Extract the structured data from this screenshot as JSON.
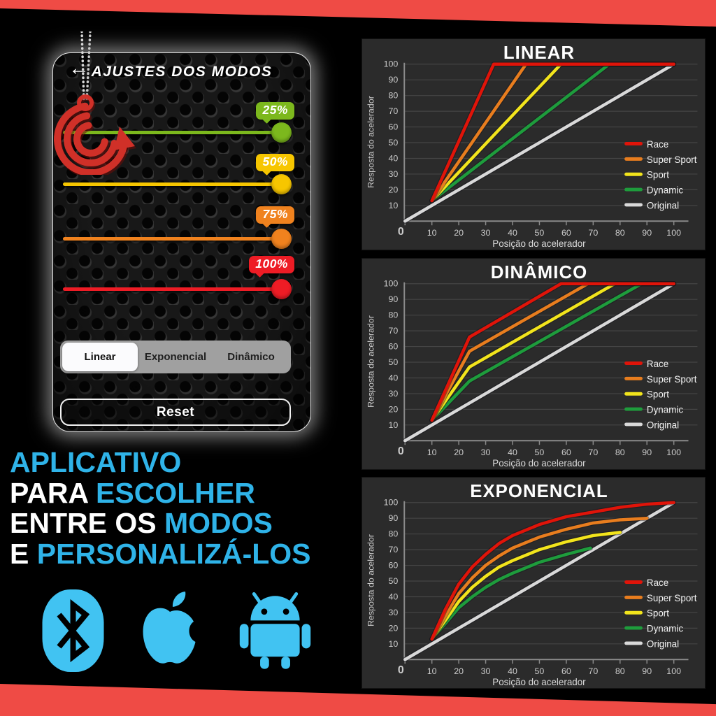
{
  "page": {
    "background": "#000000",
    "band_color": "#ef4b45",
    "accent_cyan": "#2fb3e8",
    "platform_icon_color": "#41c3f2"
  },
  "phone": {
    "back_icon": "←",
    "title": "AJUSTES DOS MODOS",
    "pendant_color": "#d03028",
    "sliders": [
      {
        "label": "25%",
        "color": "#7cb81d"
      },
      {
        "label": "50%",
        "color": "#f7c600"
      },
      {
        "label": "75%",
        "color": "#f0821e"
      },
      {
        "label": "100%",
        "color": "#ee1c25"
      }
    ],
    "segments": [
      {
        "label": "Linear",
        "selected": true
      },
      {
        "label": "Exponencial",
        "selected": false
      },
      {
        "label": "Dinâmico",
        "selected": false
      }
    ],
    "reset_label": "Reset"
  },
  "headline": {
    "accent_color": "#2fb3e8",
    "lines": [
      [
        {
          "text": "APLICATIVO",
          "accent": true
        }
      ],
      [
        {
          "text": "PARA ",
          "accent": false
        },
        {
          "text": "ESCOLHER",
          "accent": true
        }
      ],
      [
        {
          "text": "ENTRE OS ",
          "accent": false
        },
        {
          "text": "MODOS",
          "accent": true
        }
      ],
      [
        {
          "text": "E ",
          "accent": false
        },
        {
          "text": "PERSONALIZÁ-LOS",
          "accent": true
        }
      ]
    ]
  },
  "platforms": [
    "bluetooth",
    "apple",
    "android"
  ],
  "chart_data": [
    {
      "type": "line",
      "title": "LINEAR",
      "xlabel": "Posição do acelerador",
      "ylabel": "Resposta do acelerador",
      "xlim": [
        0,
        100
      ],
      "ylim": [
        0,
        100
      ],
      "xticks": [
        0,
        10,
        20,
        30,
        40,
        50,
        60,
        70,
        80,
        90,
        100
      ],
      "yticks": [
        10,
        20,
        30,
        40,
        50,
        60,
        70,
        80,
        90,
        100
      ],
      "grid": true,
      "legend_position": "right",
      "panel_bg": "#2b2b2b",
      "series": [
        {
          "name": "Race",
          "color": "#e01409",
          "points": [
            [
              10,
              13
            ],
            [
              33,
              100
            ],
            [
              100,
              100
            ]
          ]
        },
        {
          "name": "Super Sport",
          "color": "#e87d1e",
          "points": [
            [
              10,
              13
            ],
            [
              45,
              100
            ],
            [
              100,
              100
            ]
          ]
        },
        {
          "name": "Sport",
          "color": "#f2e41c",
          "points": [
            [
              10,
              13
            ],
            [
              58,
              100
            ],
            [
              100,
              100
            ]
          ]
        },
        {
          "name": "Dynamic",
          "color": "#1e9c3c",
          "points": [
            [
              10,
              13
            ],
            [
              76,
              100
            ],
            [
              100,
              100
            ]
          ]
        },
        {
          "name": "Original",
          "color": "#d9d9d9",
          "points": [
            [
              0,
              0
            ],
            [
              100,
              100
            ]
          ]
        }
      ]
    },
    {
      "type": "line",
      "title": "DINÂMICO",
      "xlabel": "Posição do acelerador",
      "ylabel": "Resposta do acelerador",
      "xlim": [
        0,
        100
      ],
      "ylim": [
        0,
        100
      ],
      "xticks": [
        0,
        10,
        20,
        30,
        40,
        50,
        60,
        70,
        80,
        90,
        100
      ],
      "yticks": [
        10,
        20,
        30,
        40,
        50,
        60,
        70,
        80,
        90,
        100
      ],
      "grid": true,
      "legend_position": "right",
      "panel_bg": "#2b2b2b",
      "series": [
        {
          "name": "Race",
          "color": "#e01409",
          "points": [
            [
              10,
              13
            ],
            [
              24,
              66
            ],
            [
              58,
              100
            ],
            [
              100,
              100
            ]
          ]
        },
        {
          "name": "Super Sport",
          "color": "#e87d1e",
          "points": [
            [
              10,
              13
            ],
            [
              24,
              57
            ],
            [
              68,
              100
            ],
            [
              100,
              100
            ]
          ]
        },
        {
          "name": "Sport",
          "color": "#f2e41c",
          "points": [
            [
              10,
              13
            ],
            [
              24,
              47
            ],
            [
              78,
              100
            ],
            [
              100,
              100
            ]
          ]
        },
        {
          "name": "Dynamic",
          "color": "#1e9c3c",
          "points": [
            [
              10,
              13
            ],
            [
              24,
              38
            ],
            [
              88,
              100
            ],
            [
              100,
              100
            ]
          ]
        },
        {
          "name": "Original",
          "color": "#d9d9d9",
          "points": [
            [
              0,
              0
            ],
            [
              100,
              100
            ]
          ]
        }
      ]
    },
    {
      "type": "line",
      "title": "EXPONENCIAL",
      "xlabel": "Posição do acelerador",
      "ylabel": "Resposta do acelerador",
      "xlim": [
        0,
        100
      ],
      "ylim": [
        0,
        100
      ],
      "xticks": [
        0,
        10,
        20,
        30,
        40,
        50,
        60,
        70,
        80,
        90,
        100
      ],
      "yticks": [
        10,
        20,
        30,
        40,
        50,
        60,
        70,
        80,
        90,
        100
      ],
      "grid": true,
      "legend_position": "right",
      "panel_bg": "#2b2b2b",
      "series": [
        {
          "name": "Race",
          "color": "#e01409",
          "points": [
            [
              10,
              13
            ],
            [
              15,
              32
            ],
            [
              20,
              48
            ],
            [
              25,
              59
            ],
            [
              30,
              67
            ],
            [
              35,
              74
            ],
            [
              40,
              79
            ],
            [
              50,
              86
            ],
            [
              60,
              91
            ],
            [
              70,
              94
            ],
            [
              80,
              97
            ],
            [
              90,
              99
            ],
            [
              100,
              100
            ]
          ]
        },
        {
          "name": "Super Sport",
          "color": "#e87d1e",
          "points": [
            [
              10,
              13
            ],
            [
              15,
              28
            ],
            [
              20,
              42
            ],
            [
              25,
              52
            ],
            [
              30,
              60
            ],
            [
              35,
              66
            ],
            [
              40,
              71
            ],
            [
              50,
              78
            ],
            [
              60,
              83
            ],
            [
              70,
              87
            ],
            [
              80,
              89
            ],
            [
              90,
              90
            ]
          ]
        },
        {
          "name": "Sport",
          "color": "#f2e41c",
          "points": [
            [
              10,
              13
            ],
            [
              15,
              25
            ],
            [
              20,
              37
            ],
            [
              25,
              46
            ],
            [
              30,
              53
            ],
            [
              35,
              59
            ],
            [
              40,
              63
            ],
            [
              50,
              70
            ],
            [
              60,
              75
            ],
            [
              70,
              79
            ],
            [
              80,
              81
            ]
          ]
        },
        {
          "name": "Dynamic",
          "color": "#1e9c3c",
          "points": [
            [
              10,
              13
            ],
            [
              15,
              23
            ],
            [
              20,
              33
            ],
            [
              25,
              40
            ],
            [
              30,
              46
            ],
            [
              35,
              51
            ],
            [
              40,
              55
            ],
            [
              50,
              62
            ],
            [
              60,
              67
            ],
            [
              69,
              71
            ]
          ]
        },
        {
          "name": "Original",
          "color": "#d9d9d9",
          "points": [
            [
              0,
              0
            ],
            [
              100,
              100
            ]
          ]
        }
      ]
    }
  ]
}
